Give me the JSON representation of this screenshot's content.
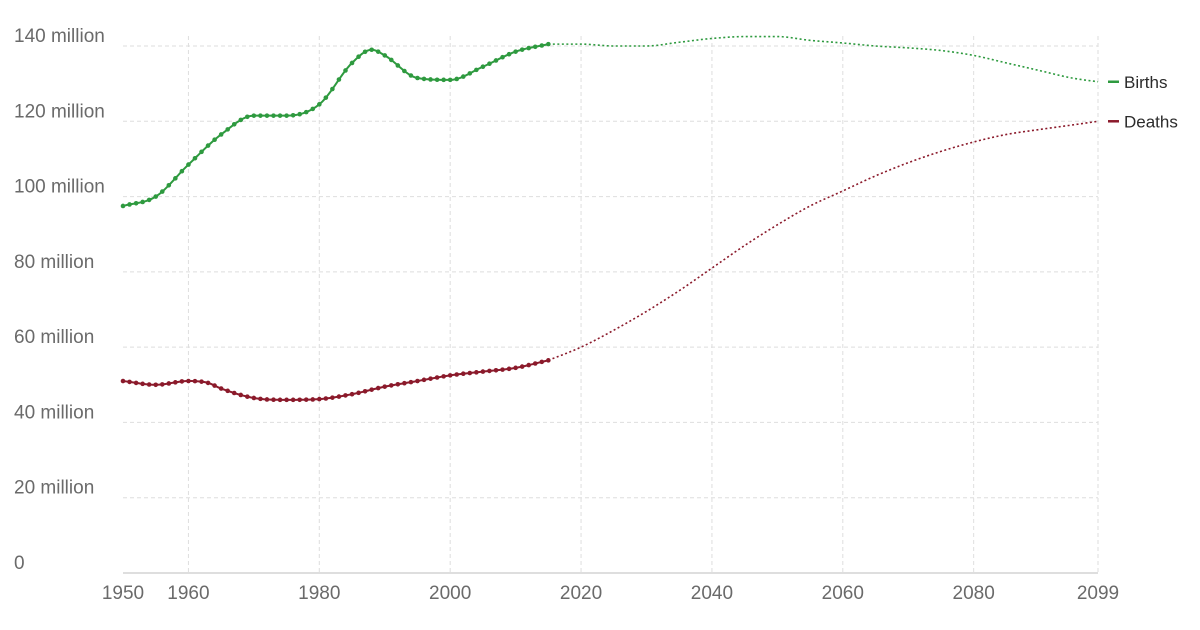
{
  "chart_data": {
    "type": "line",
    "title": "",
    "xlabel": "",
    "ylabel": "",
    "xlim": [
      1950,
      2099
    ],
    "ylim": [
      0,
      140000000
    ],
    "grid": true,
    "legend_placement": "right, at line ends",
    "x_ticks": [
      {
        "value": 1950,
        "label": "1950"
      },
      {
        "value": 1960,
        "label": "1960"
      },
      {
        "value": 1980,
        "label": "1980"
      },
      {
        "value": 2000,
        "label": "2000"
      },
      {
        "value": 2020,
        "label": "2020"
      },
      {
        "value": 2040,
        "label": "2040"
      },
      {
        "value": 2060,
        "label": "2060"
      },
      {
        "value": 2080,
        "label": "2080"
      },
      {
        "value": 2099,
        "label": "2099"
      }
    ],
    "y_ticks": [
      {
        "value": 0,
        "label": "0"
      },
      {
        "value": 20000000,
        "label": "20 million"
      },
      {
        "value": 40000000,
        "label": "40 million"
      },
      {
        "value": 60000000,
        "label": "60 million"
      },
      {
        "value": 80000000,
        "label": "80 million"
      },
      {
        "value": 100000000,
        "label": "100 million"
      },
      {
        "value": 120000000,
        "label": "120 million"
      },
      {
        "value": 140000000,
        "label": "140 million"
      }
    ],
    "series": [
      {
        "name": "Births",
        "color": "#2e9a3f",
        "observed": {
          "x": [
            1950,
            1955,
            1960,
            1965,
            1970,
            1975,
            1980,
            1985,
            1988,
            1990,
            1995,
            2000,
            2005,
            2010,
            2015
          ],
          "y": [
            97500000,
            100000000,
            108500000,
            116500000,
            121500000,
            121500000,
            124500000,
            135500000,
            139000000,
            137500000,
            131500000,
            131000000,
            134500000,
            138500000,
            140500000
          ]
        },
        "projected": {
          "x": [
            2015,
            2020,
            2025,
            2030,
            2035,
            2040,
            2045,
            2050,
            2055,
            2060,
            2065,
            2070,
            2075,
            2080,
            2085,
            2090,
            2095,
            2099
          ],
          "y": [
            140500000,
            140500000,
            140000000,
            140000000,
            141000000,
            142000000,
            142500000,
            142500000,
            141500000,
            140800000,
            140000000,
            139500000,
            138800000,
            137500000,
            135500000,
            133500000,
            131500000,
            130500000
          ]
        }
      },
      {
        "name": "Deaths",
        "color": "#8b1a2b",
        "observed": {
          "x": [
            1950,
            1955,
            1960,
            1963,
            1965,
            1970,
            1975,
            1980,
            1985,
            1990,
            1995,
            2000,
            2005,
            2010,
            2015
          ],
          "y": [
            51000000,
            50000000,
            51000000,
            50500000,
            49000000,
            46500000,
            46000000,
            46200000,
            47500000,
            49500000,
            51000000,
            52500000,
            53500000,
            54500000,
            56500000
          ]
        },
        "projected": {
          "x": [
            2015,
            2020,
            2025,
            2030,
            2035,
            2040,
            2045,
            2050,
            2055,
            2060,
            2065,
            2070,
            2075,
            2080,
            2085,
            2090,
            2095,
            2099
          ],
          "y": [
            56500000,
            60000000,
            64500000,
            69500000,
            75000000,
            81000000,
            87000000,
            92500000,
            97500000,
            101500000,
            105500000,
            109000000,
            112000000,
            114500000,
            116500000,
            117800000,
            119000000,
            120000000
          ]
        }
      }
    ]
  }
}
